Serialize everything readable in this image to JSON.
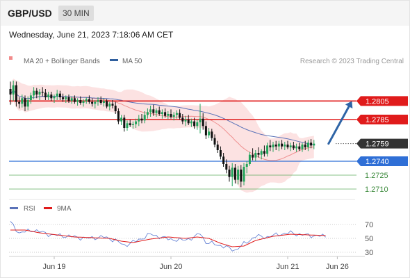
{
  "header": {
    "symbol": "GBP/USD",
    "timeframe": "30 MIN",
    "datetime": "Wednesday, June 21, 2023 7:18:06 AM CET"
  },
  "legend": {
    "items": [
      {
        "label": "MA 20 + Bollinger Bands",
        "color": "#f28b8b"
      },
      {
        "label": "MA 50",
        "color": "#2f5f9e"
      }
    ],
    "credit": "Research © 2023 Trading Central"
  },
  "colors": {
    "bull": "#22a35a",
    "bear": "#111111",
    "band": "#fbd8d8",
    "ma20": "#ef8f8f",
    "ma50": "#5a72b8",
    "resistance": "#e01b1b",
    "pivot": "#2f6fd6",
    "support": "#5fae5f",
    "arrow": "#2e64a6",
    "current": "#333333"
  },
  "chart_data": {
    "type": "candlestick",
    "x_ticks": [
      "Jun 19",
      "Jun 20",
      "Jun 21",
      "Jun 26"
    ],
    "x_tick_candle_index": [
      15,
      55,
      95,
      112
    ],
    "ylim": [
      1.2698,
      1.2836
    ],
    "levels": [
      {
        "value": 1.2805,
        "label": "1.2805",
        "kind": "resistance"
      },
      {
        "value": 1.2785,
        "label": "1.2785",
        "kind": "resistance"
      },
      {
        "value": 1.2759,
        "label": "1.2759",
        "kind": "current"
      },
      {
        "value": 1.274,
        "label": "1.2740",
        "kind": "pivot"
      },
      {
        "value": 1.2725,
        "label": "1.2725",
        "kind": "support"
      },
      {
        "value": 1.271,
        "label": "1.2710",
        "kind": "support"
      }
    ],
    "projection": {
      "from": [
        109,
        1.2759
      ],
      "to": [
        117,
        1.2805
      ]
    },
    "ohlc": [
      [
        1.2818,
        1.2826,
        1.2801,
        1.2812
      ],
      [
        1.2812,
        1.2827,
        1.2805,
        1.2822
      ],
      [
        1.2822,
        1.2826,
        1.2799,
        1.2804
      ],
      [
        1.2804,
        1.2809,
        1.2797,
        1.2802
      ],
      [
        1.2802,
        1.2812,
        1.2798,
        1.2808
      ],
      [
        1.2808,
        1.2811,
        1.2794,
        1.2799
      ],
      [
        1.2799,
        1.281,
        1.2795,
        1.2806
      ],
      [
        1.2806,
        1.2814,
        1.2802,
        1.2811
      ],
      [
        1.2811,
        1.282,
        1.2807,
        1.2816
      ],
      [
        1.2816,
        1.2819,
        1.2808,
        1.2812
      ],
      [
        1.2812,
        1.2818,
        1.2806,
        1.2815
      ],
      [
        1.2815,
        1.282,
        1.281,
        1.2814
      ],
      [
        1.2814,
        1.2818,
        1.2806,
        1.2809
      ],
      [
        1.2809,
        1.2815,
        1.2806,
        1.2812
      ],
      [
        1.2812,
        1.2815,
        1.2805,
        1.2808
      ],
      [
        1.2808,
        1.2812,
        1.2803,
        1.281
      ],
      [
        1.281,
        1.2817,
        1.2806,
        1.2813
      ],
      [
        1.2813,
        1.2816,
        1.2806,
        1.2809
      ],
      [
        1.2809,
        1.2813,
        1.2804,
        1.2807
      ],
      [
        1.2807,
        1.2811,
        1.2803,
        1.2809
      ],
      [
        1.2809,
        1.2812,
        1.2803,
        1.2805
      ],
      [
        1.2805,
        1.281,
        1.2802,
        1.2808
      ],
      [
        1.2808,
        1.2811,
        1.2802,
        1.2804
      ],
      [
        1.2804,
        1.2808,
        1.28,
        1.2806
      ],
      [
        1.2806,
        1.281,
        1.2801,
        1.2803
      ],
      [
        1.2803,
        1.2807,
        1.2799,
        1.2805
      ],
      [
        1.2805,
        1.2809,
        1.2802,
        1.2807
      ],
      [
        1.2807,
        1.2811,
        1.2802,
        1.2804
      ],
      [
        1.2804,
        1.2808,
        1.2799,
        1.2802
      ],
      [
        1.2802,
        1.2806,
        1.2797,
        1.2804
      ],
      [
        1.2804,
        1.2809,
        1.28,
        1.2806
      ],
      [
        1.2806,
        1.281,
        1.2801,
        1.2803
      ],
      [
        1.2803,
        1.2808,
        1.2799,
        1.2805
      ],
      [
        1.2805,
        1.2807,
        1.2797,
        1.2799
      ],
      [
        1.2799,
        1.2804,
        1.2795,
        1.2802
      ],
      [
        1.2802,
        1.2806,
        1.2797,
        1.28
      ],
      [
        1.28,
        1.2804,
        1.2791,
        1.2794
      ],
      [
        1.2794,
        1.2797,
        1.278,
        1.2783
      ],
      [
        1.2783,
        1.279,
        1.2779,
        1.2787
      ],
      [
        1.2787,
        1.279,
        1.2772,
        1.2776
      ],
      [
        1.2776,
        1.2784,
        1.2773,
        1.2781
      ],
      [
        1.2781,
        1.2785,
        1.2777,
        1.2779
      ],
      [
        1.2779,
        1.2783,
        1.2775,
        1.278
      ],
      [
        1.278,
        1.2786,
        1.2776,
        1.2783
      ],
      [
        1.2783,
        1.279,
        1.2778,
        1.2786
      ],
      [
        1.2786,
        1.2791,
        1.2781,
        1.2784
      ],
      [
        1.2784,
        1.2794,
        1.2781,
        1.279
      ],
      [
        1.279,
        1.2797,
        1.2786,
        1.2793
      ],
      [
        1.2793,
        1.28,
        1.2788,
        1.2796
      ],
      [
        1.2796,
        1.2801,
        1.2789,
        1.2792
      ],
      [
        1.2792,
        1.2797,
        1.2788,
        1.2795
      ],
      [
        1.2795,
        1.2799,
        1.2789,
        1.2791
      ],
      [
        1.2791,
        1.2796,
        1.2786,
        1.2793
      ],
      [
        1.2793,
        1.2797,
        1.2787,
        1.2789
      ],
      [
        1.2789,
        1.2794,
        1.2785,
        1.2791
      ],
      [
        1.2791,
        1.2796,
        1.2786,
        1.2788
      ],
      [
        1.2788,
        1.2793,
        1.2784,
        1.279
      ],
      [
        1.279,
        1.2795,
        1.2786,
        1.2792
      ],
      [
        1.2792,
        1.2796,
        1.2785,
        1.2787
      ],
      [
        1.2787,
        1.2791,
        1.278,
        1.2783
      ],
      [
        1.2783,
        1.2789,
        1.2778,
        1.2785
      ],
      [
        1.2785,
        1.279,
        1.2779,
        1.2781
      ],
      [
        1.2781,
        1.2786,
        1.2777,
        1.2783
      ],
      [
        1.2783,
        1.2787,
        1.2775,
        1.2778
      ],
      [
        1.2778,
        1.2785,
        1.2774,
        1.2782
      ],
      [
        1.2782,
        1.2802,
        1.277,
        1.2786
      ],
      [
        1.2786,
        1.2792,
        1.2774,
        1.2778
      ],
      [
        1.2778,
        1.2783,
        1.2764,
        1.2768
      ],
      [
        1.2768,
        1.2776,
        1.2765,
        1.2772
      ],
      [
        1.2772,
        1.2775,
        1.2762,
        1.2765
      ],
      [
        1.2765,
        1.2769,
        1.2755,
        1.2758
      ],
      [
        1.2758,
        1.2762,
        1.2749,
        1.2752
      ],
      [
        1.2752,
        1.2756,
        1.2742,
        1.2745
      ],
      [
        1.2745,
        1.2749,
        1.2734,
        1.2737
      ],
      [
        1.2737,
        1.2742,
        1.2727,
        1.2731
      ],
      [
        1.2731,
        1.2735,
        1.2718,
        1.2723
      ],
      [
        1.2723,
        1.2738,
        1.2713,
        1.2733
      ],
      [
        1.2733,
        1.2737,
        1.2716,
        1.272
      ],
      [
        1.272,
        1.2735,
        1.2715,
        1.2731
      ],
      [
        1.2731,
        1.2736,
        1.2712,
        1.2718
      ],
      [
        1.2718,
        1.2738,
        1.2714,
        1.2734
      ],
      [
        1.2734,
        1.274,
        1.2727,
        1.2737
      ],
      [
        1.2737,
        1.275,
        1.2735,
        1.2747
      ],
      [
        1.2747,
        1.2754,
        1.2741,
        1.2744
      ],
      [
        1.2744,
        1.2752,
        1.274,
        1.2749
      ],
      [
        1.2749,
        1.2755,
        1.2744,
        1.2747
      ],
      [
        1.2747,
        1.2753,
        1.2742,
        1.2751
      ],
      [
        1.2751,
        1.2757,
        1.2745,
        1.2748
      ],
      [
        1.2748,
        1.276,
        1.2745,
        1.2757
      ],
      [
        1.2757,
        1.2763,
        1.2751,
        1.2755
      ],
      [
        1.2755,
        1.2761,
        1.275,
        1.2758
      ],
      [
        1.2758,
        1.2762,
        1.2752,
        1.2756
      ],
      [
        1.2756,
        1.2762,
        1.2751,
        1.2759
      ],
      [
        1.2759,
        1.2763,
        1.2753,
        1.2756
      ],
      [
        1.2756,
        1.2761,
        1.2752,
        1.2758
      ],
      [
        1.2758,
        1.2762,
        1.2753,
        1.2755
      ],
      [
        1.2755,
        1.276,
        1.2751,
        1.2757
      ],
      [
        1.2757,
        1.2761,
        1.2752,
        1.2754
      ],
      [
        1.2754,
        1.2759,
        1.275,
        1.2756
      ],
      [
        1.2756,
        1.276,
        1.2751,
        1.2753
      ],
      [
        1.2753,
        1.276,
        1.275,
        1.2758
      ],
      [
        1.2758,
        1.2762,
        1.2752,
        1.2755
      ],
      [
        1.2755,
        1.2763,
        1.2751,
        1.276
      ],
      [
        1.276,
        1.2764,
        1.2754,
        1.2757
      ],
      [
        1.2757,
        1.2763,
        1.2753,
        1.2759
      ]
    ],
    "rsi": {
      "label": "RSI",
      "signal_label": "9MA",
      "ticks": [
        70,
        50,
        30
      ],
      "ylim": [
        20,
        80
      ],
      "keypoints": [
        [
          0,
          73
        ],
        [
          3,
          58
        ],
        [
          8,
          62
        ],
        [
          14,
          55
        ],
        [
          20,
          53
        ],
        [
          26,
          50
        ],
        [
          32,
          52
        ],
        [
          36,
          47
        ],
        [
          39,
          40
        ],
        [
          43,
          46
        ],
        [
          48,
          56
        ],
        [
          53,
          50
        ],
        [
          58,
          47
        ],
        [
          63,
          51
        ],
        [
          65,
          58
        ],
        [
          67,
          44
        ],
        [
          71,
          41
        ],
        [
          74,
          37
        ],
        [
          77,
          33
        ],
        [
          80,
          42
        ],
        [
          84,
          53
        ],
        [
          88,
          52
        ],
        [
          92,
          56
        ],
        [
          96,
          58
        ],
        [
          100,
          55
        ],
        [
          104,
          54
        ],
        [
          108,
          53
        ]
      ],
      "signal_keypoints": [
        [
          0,
          62
        ],
        [
          5,
          62
        ],
        [
          10,
          58
        ],
        [
          16,
          55
        ],
        [
          22,
          52
        ],
        [
          28,
          51
        ],
        [
          34,
          50
        ],
        [
          38,
          46
        ],
        [
          42,
          44
        ],
        [
          48,
          49
        ],
        [
          54,
          52
        ],
        [
          60,
          50
        ],
        [
          64,
          52
        ],
        [
          68,
          50
        ],
        [
          72,
          43
        ],
        [
          76,
          38
        ],
        [
          80,
          39
        ],
        [
          84,
          47
        ],
        [
          90,
          53
        ],
        [
          96,
          56
        ],
        [
          102,
          55
        ],
        [
          108,
          54
        ]
      ]
    }
  }
}
